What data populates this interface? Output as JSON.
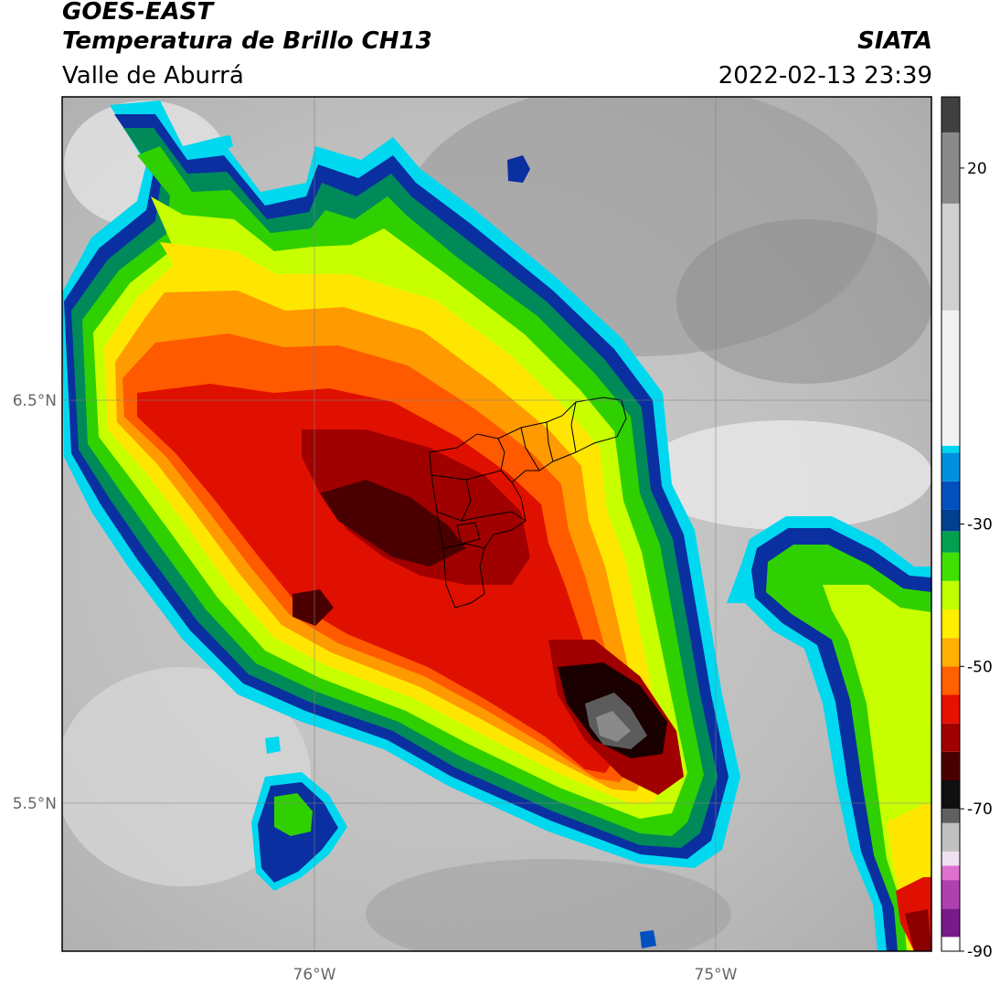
{
  "header": {
    "satellite": "GOES-EAST",
    "product": "Temperatura de Brillo CH13",
    "region": "Valle de Aburrá",
    "agency": "SIATA",
    "datetime": "2022-02-13 23:39"
  },
  "map": {
    "lat_labels": [
      "6.5°N",
      "5.5°N"
    ],
    "lon_labels": [
      "76°W",
      "75°W"
    ]
  },
  "colorbar": {
    "ticks": [
      "20",
      "-30",
      "-50",
      "-70",
      "-90"
    ],
    "stops": [
      {
        "v": -90,
        "c": "#ffffff"
      },
      {
        "v": -88,
        "c": "#7a1a8a"
      },
      {
        "v": -84,
        "c": "#b040b0"
      },
      {
        "v": -80,
        "c": "#e070d0"
      },
      {
        "v": -78,
        "c": "#f0e0f0"
      },
      {
        "v": -76,
        "c": "#c0c0c0"
      },
      {
        "v": -72,
        "c": "#606060"
      },
      {
        "v": -70,
        "c": "#101010"
      },
      {
        "v": -66,
        "c": "#4a0000"
      },
      {
        "v": -62,
        "c": "#a00000"
      },
      {
        "v": -58,
        "c": "#e81000"
      },
      {
        "v": -54,
        "c": "#ff6000"
      },
      {
        "v": -50,
        "c": "#ffb000"
      },
      {
        "v": -46,
        "c": "#ffee00"
      },
      {
        "v": -42,
        "c": "#c0ff00"
      },
      {
        "v": -38,
        "c": "#40e000"
      },
      {
        "v": -34,
        "c": "#00a050"
      },
      {
        "v": -31,
        "c": "#004090"
      },
      {
        "v": -28,
        "c": "#0050c0"
      },
      {
        "v": -24,
        "c": "#0090e0"
      },
      {
        "v": -20,
        "c": "#00d8f0"
      },
      {
        "v": -19,
        "c": "#f2f2f2"
      },
      {
        "v": 0,
        "c": "#d0d0d0"
      },
      {
        "v": 15,
        "c": "#8a8a8a"
      },
      {
        "v": 25,
        "c": "#404040"
      },
      {
        "v": 30,
        "c": "#080808"
      }
    ]
  }
}
